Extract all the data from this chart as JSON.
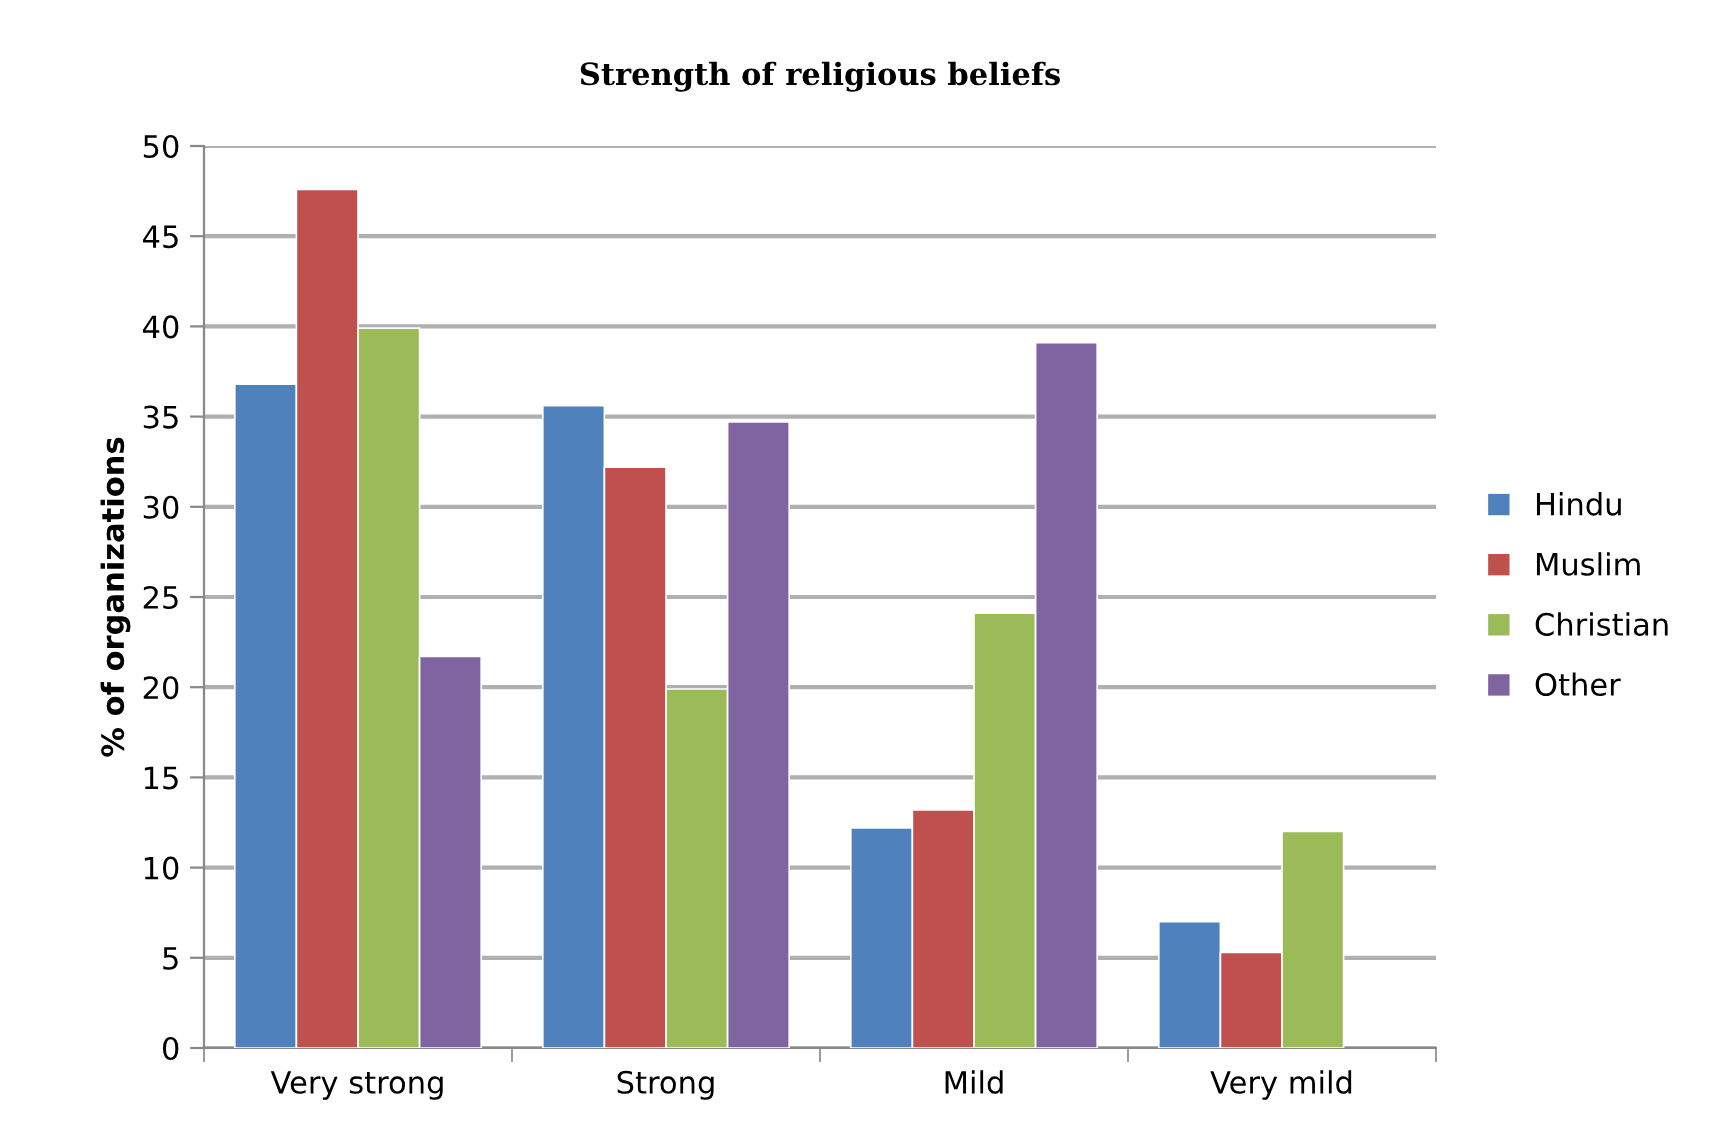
{
  "chart_data": {
    "type": "bar",
    "title": "Strength of religious beliefs",
    "ylabel": "% of organizations",
    "categories": [
      "Very strong",
      "Strong",
      "Mild",
      "Very mild"
    ],
    "series": [
      {
        "name": "Hindu",
        "color": "#4f81bd",
        "values": [
          36.8,
          35.6,
          12.2,
          7.0
        ]
      },
      {
        "name": "Muslim",
        "color": "#c0504d",
        "values": [
          47.6,
          32.2,
          13.2,
          5.3
        ]
      },
      {
        "name": "Christian",
        "color": "#9bbb59",
        "values": [
          39.9,
          19.9,
          24.1,
          12.0
        ]
      },
      {
        "name": "Other",
        "color": "#8064a2",
        "values": [
          21.7,
          34.7,
          39.1,
          null
        ]
      }
    ],
    "ylim": [
      0,
      50
    ],
    "yticks": [
      0,
      5,
      10,
      15,
      20,
      25,
      30,
      35,
      40,
      45,
      50
    ],
    "grid": "y",
    "legend": "right"
  }
}
